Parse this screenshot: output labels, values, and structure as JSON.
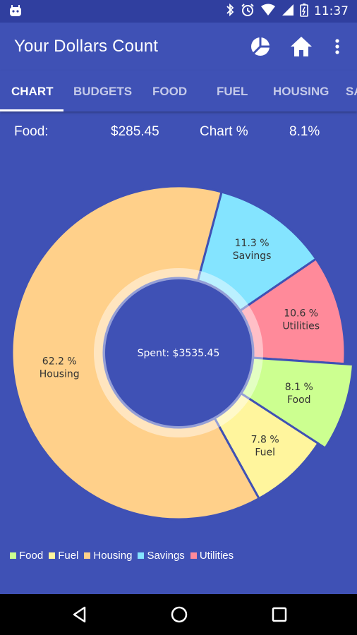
{
  "status_bar": {
    "time": "11:37"
  },
  "app_bar": {
    "title": "Your Dollars Count"
  },
  "tabs": [
    {
      "label": "CHART",
      "active": true
    },
    {
      "label": "BUDGETS",
      "active": false
    },
    {
      "label": "FOOD",
      "active": false
    },
    {
      "label": "FUEL",
      "active": false
    },
    {
      "label": "HOUSING",
      "active": false
    },
    {
      "label": "SA",
      "active": false
    }
  ],
  "summary": {
    "category_label": "Food:",
    "amount": "$285.45",
    "chart_label": "Chart %",
    "chart_percent": "8.1%"
  },
  "colors": {
    "background": "#3f51b5",
    "food": "#ccff90",
    "fuel": "#fff59d",
    "housing": "#ffd08a",
    "savings": "#80deea",
    "utilities": "#ff8a9a"
  },
  "chart_data": {
    "type": "pie",
    "center_label": "Spent: $3535.45",
    "highlighted": "Food",
    "slices": [
      {
        "name": "Savings",
        "percent": 11.3,
        "label": "11.3 %",
        "color": "#84e4ff"
      },
      {
        "name": "Utilities",
        "percent": 10.6,
        "label": "10.6 %",
        "color": "#ff8a9a"
      },
      {
        "name": "Food",
        "percent": 8.1,
        "label": "8.1 %",
        "color": "#ccff90"
      },
      {
        "name": "Fuel",
        "percent": 7.8,
        "label": "7.8 %",
        "color": "#fff59d"
      },
      {
        "name": "Housing",
        "percent": 62.2,
        "label": "62.2 %",
        "color": "#ffd08a"
      }
    ],
    "legend": [
      "Food",
      "Fuel",
      "Housing",
      "Savings",
      "Utilities"
    ],
    "legend_placement": "bottom-left"
  },
  "legend_items": [
    {
      "label": "Food",
      "color": "#ccff90"
    },
    {
      "label": "Fuel",
      "color": "#fff59d"
    },
    {
      "label": "Housing",
      "color": "#ffd08a"
    },
    {
      "label": "Savings",
      "color": "#84e4ff"
    },
    {
      "label": "Utilities",
      "color": "#ff8a9a"
    }
  ]
}
